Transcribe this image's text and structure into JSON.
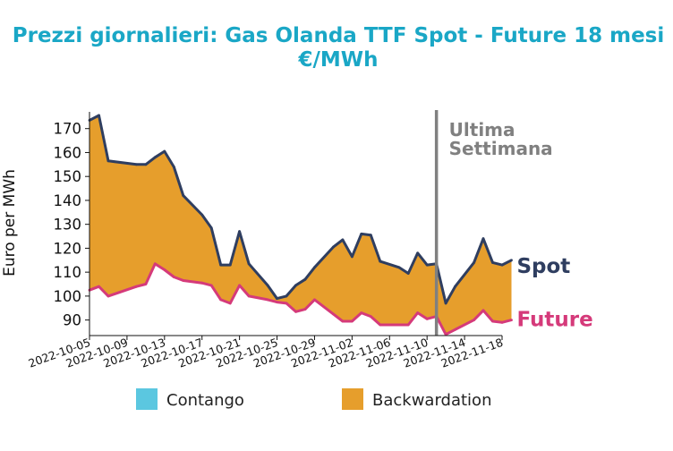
{
  "chart_data": {
    "type": "area",
    "title_line1": "Prezzi giornalieri: Gas Olanda TTF Spot - Future 18 mesi",
    "title_line2": "€/MWh",
    "ylabel": "Euro per MWh",
    "xlabel": "",
    "ylim": [
      83.5,
      177
    ],
    "yticks": [
      90,
      100,
      110,
      120,
      130,
      140,
      150,
      160,
      170
    ],
    "xlim": [
      "2022-10-05",
      "2022-11-18"
    ],
    "xticks": [
      "2022-10-05",
      "2022-10-09",
      "2022-10-13",
      "2022-10-17",
      "2022-10-21",
      "2022-10-25",
      "2022-10-29",
      "2022-11-02",
      "2022-11-06",
      "2022-11-10",
      "2022-11-14",
      "2022-11-18"
    ],
    "grid": false,
    "legend": {
      "placement": "bottom",
      "items": [
        {
          "label": "Contango",
          "color": "#5bc7e0"
        },
        {
          "label": "Backwardation",
          "color": "#e69e2c"
        }
      ]
    },
    "annotation": {
      "date": "2022-11-11",
      "line1": "Ultima",
      "line2": "Settimana",
      "color": "#808080"
    },
    "series": [
      {
        "name": "Spot",
        "color": "#2f3e60",
        "points": [
          [
            "2022-10-05",
            173.5
          ],
          [
            "2022-10-06",
            175.5
          ],
          [
            "2022-10-07",
            156.5
          ],
          [
            "2022-10-10",
            155
          ],
          [
            "2022-10-11",
            155
          ],
          [
            "2022-10-12",
            158
          ],
          [
            "2022-10-13",
            160.5
          ],
          [
            "2022-10-14",
            154
          ],
          [
            "2022-10-15",
            142
          ],
          [
            "2022-10-17",
            134
          ],
          [
            "2022-10-18",
            128.5
          ],
          [
            "2022-10-19",
            113
          ],
          [
            "2022-10-20",
            113
          ],
          [
            "2022-10-21",
            127
          ],
          [
            "2022-10-22",
            113.5
          ],
          [
            "2022-10-24",
            104.5
          ],
          [
            "2022-10-25",
            99
          ],
          [
            "2022-10-26",
            100
          ],
          [
            "2022-10-27",
            104.5
          ],
          [
            "2022-10-28",
            107
          ],
          [
            "2022-10-29",
            112
          ],
          [
            "2022-10-31",
            120.5
          ],
          [
            "2022-11-01",
            123.5
          ],
          [
            "2022-11-02",
            116.5
          ],
          [
            "2022-11-03",
            126
          ],
          [
            "2022-11-04",
            125.5
          ],
          [
            "2022-11-05",
            114.5
          ],
          [
            "2022-11-07",
            112
          ],
          [
            "2022-11-08",
            109.5
          ],
          [
            "2022-11-09",
            118
          ],
          [
            "2022-11-10",
            113
          ],
          [
            "2022-11-11",
            113.5
          ],
          [
            "2022-11-12",
            97
          ],
          [
            "2022-11-13",
            104
          ],
          [
            "2022-11-15",
            114
          ],
          [
            "2022-11-16",
            124
          ],
          [
            "2022-11-17",
            114
          ],
          [
            "2022-11-18",
            113
          ],
          [
            "2022-11-19",
            115
          ]
        ]
      },
      {
        "name": "Future",
        "color": "#d53a7a",
        "points": [
          [
            "2022-10-05",
            102.5
          ],
          [
            "2022-10-06",
            104
          ],
          [
            "2022-10-07",
            100
          ],
          [
            "2022-10-10",
            104
          ],
          [
            "2022-10-11",
            105
          ],
          [
            "2022-10-12",
            113.5
          ],
          [
            "2022-10-13",
            111
          ],
          [
            "2022-10-14",
            108
          ],
          [
            "2022-10-15",
            106.5
          ],
          [
            "2022-10-17",
            105.5
          ],
          [
            "2022-10-18",
            104.5
          ],
          [
            "2022-10-19",
            98.5
          ],
          [
            "2022-10-20",
            97
          ],
          [
            "2022-10-21",
            104.5
          ],
          [
            "2022-10-22",
            100
          ],
          [
            "2022-10-24",
            98.5
          ],
          [
            "2022-10-25",
            97.5
          ],
          [
            "2022-10-26",
            97
          ],
          [
            "2022-10-27",
            93.5
          ],
          [
            "2022-10-28",
            94.5
          ],
          [
            "2022-10-29",
            98.5
          ],
          [
            "2022-10-31",
            92.5
          ],
          [
            "2022-11-01",
            89.5
          ],
          [
            "2022-11-02",
            89.5
          ],
          [
            "2022-11-03",
            93
          ],
          [
            "2022-11-04",
            91.5
          ],
          [
            "2022-11-05",
            88
          ],
          [
            "2022-11-07",
            88
          ],
          [
            "2022-11-08",
            88
          ],
          [
            "2022-11-09",
            93
          ],
          [
            "2022-11-10",
            90.5
          ],
          [
            "2022-11-11",
            91.5
          ],
          [
            "2022-11-12",
            84
          ],
          [
            "2022-11-13",
            86
          ],
          [
            "2022-11-15",
            90
          ],
          [
            "2022-11-16",
            94
          ],
          [
            "2022-11-17",
            89.5
          ],
          [
            "2022-11-18",
            89
          ],
          [
            "2022-11-19",
            90
          ]
        ]
      }
    ]
  }
}
